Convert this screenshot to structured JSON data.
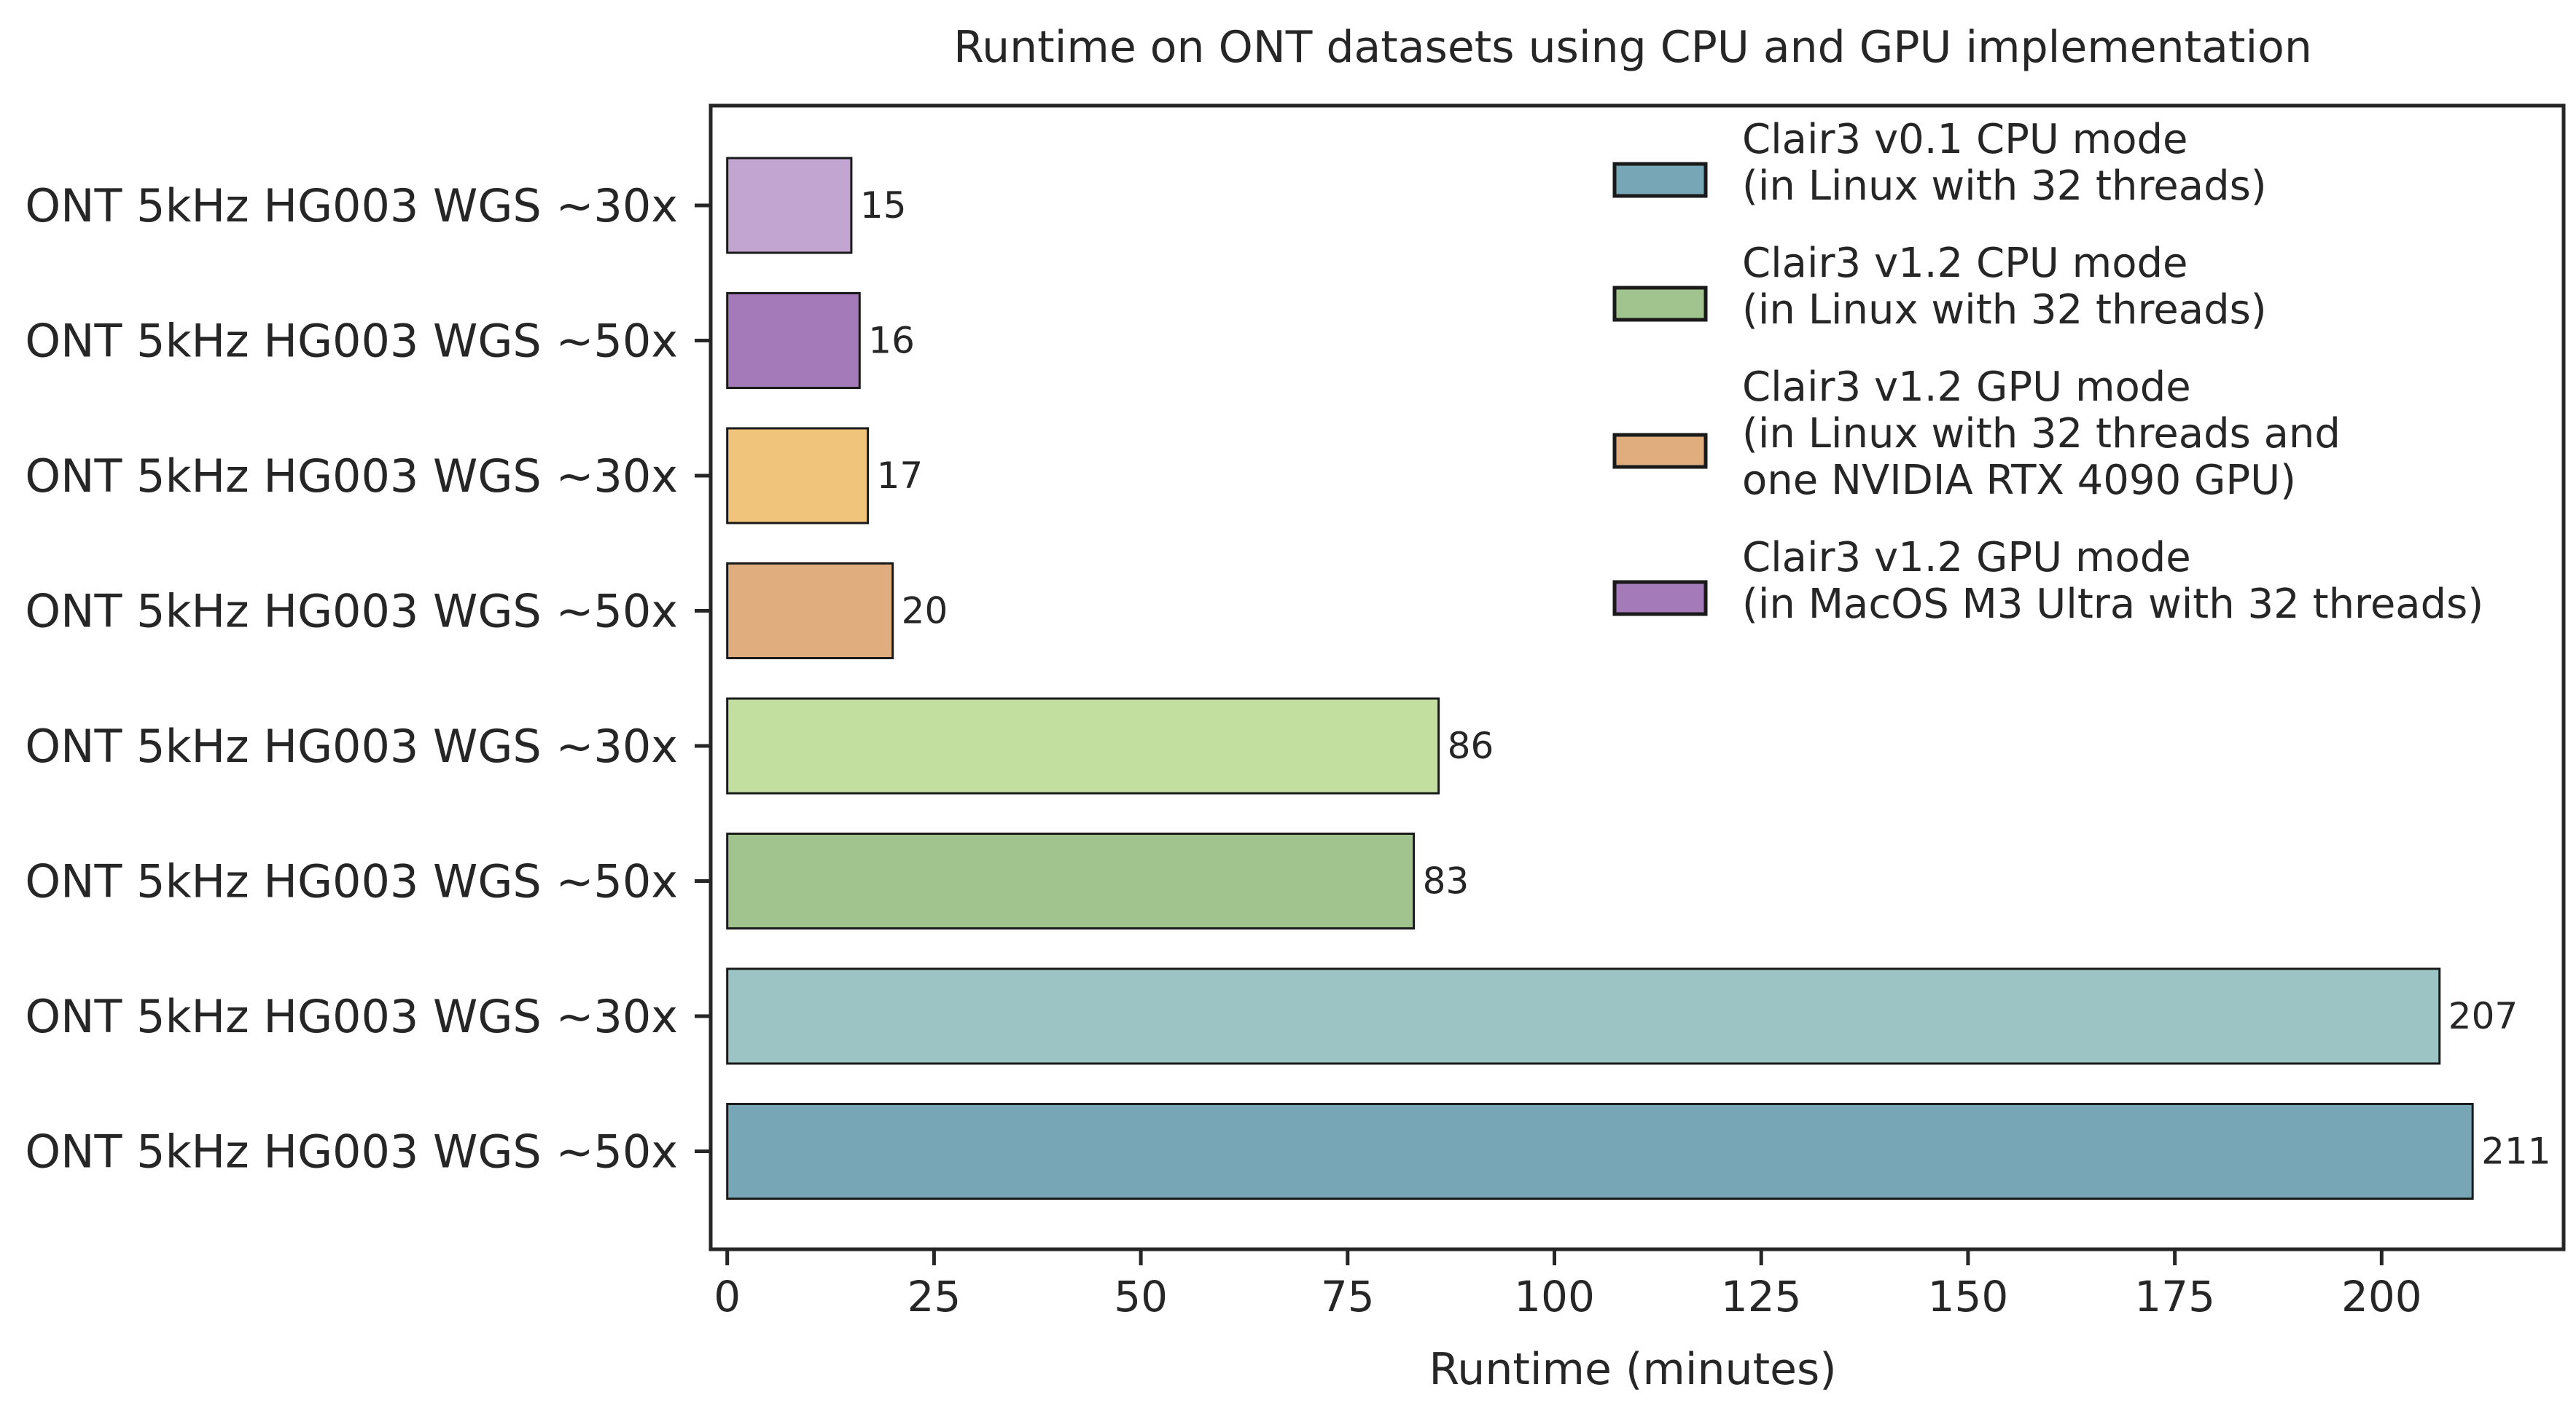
{
  "chart_data": {
    "type": "bar",
    "orientation": "horizontal",
    "title": "Runtime on ONT datasets using CPU and GPU implementation",
    "xlabel": "Runtime (minutes)",
    "ylabel": "",
    "xlim": [
      -2,
      222
    ],
    "xticks": [
      0,
      25,
      50,
      75,
      100,
      125,
      150,
      175,
      200
    ],
    "grid": false,
    "legend_position": "top-right",
    "categories": [
      "ONT 5kHz HG003 WGS ~30x",
      "ONT 5kHz HG003 WGS ~50x",
      "ONT 5kHz HG003 WGS ~30x",
      "ONT 5kHz HG003 WGS ~50x",
      "ONT 5kHz HG003 WGS ~30x",
      "ONT 5kHz HG003 WGS ~50x",
      "ONT 5kHz HG003 WGS ~30x",
      "ONT 5kHz HG003 WGS ~50x"
    ],
    "values": [
      15,
      16,
      17,
      20,
      86,
      83,
      207,
      211
    ],
    "bar_colors": [
      "#c2a5d1",
      "#a57ab8",
      "#f1c47c",
      "#e0ad7e",
      "#c3dfa0",
      "#a1c48f",
      "#9dc4c4",
      "#77a6b6"
    ],
    "legend": [
      {
        "lines": [
          "Clair3 v0.1 CPU mode",
          "(in Linux with 32 threads)"
        ],
        "color": "#77a6b6"
      },
      {
        "lines": [
          "Clair3 v1.2 CPU mode",
          "(in Linux with 32 threads)"
        ],
        "color": "#a1c48f"
      },
      {
        "lines": [
          "Clair3 v1.2 GPU mode",
          "(in Linux with 32 threads and",
          " one NVIDIA RTX 4090 GPU)"
        ],
        "color": "#e0ad7e"
      },
      {
        "lines": [
          "Clair3 v1.2 GPU mode",
          "(in MacOS M3 Ultra with 32 threads)"
        ],
        "color": "#a57ab8"
      }
    ]
  }
}
